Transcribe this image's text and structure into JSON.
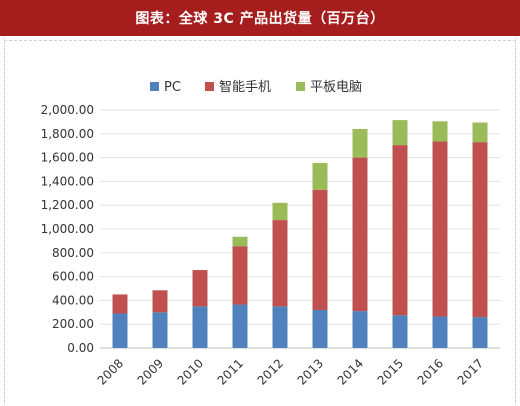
{
  "header": {
    "title": "图表：全球 3C 产品出货量（百万台）"
  },
  "chart_data": {
    "type": "bar",
    "stacked": true,
    "title": "图表：全球 3C 产品出货量（百万台）",
    "categories": [
      "2008",
      "2009",
      "2010",
      "2011",
      "2012",
      "2013",
      "2014",
      "2015",
      "2016",
      "2017"
    ],
    "series": [
      {
        "name": "PC",
        "color": "#4f81bd",
        "values": [
          290,
          300,
          350,
          365,
          350,
          320,
          310,
          275,
          265,
          260
        ]
      },
      {
        "name": "智能手机",
        "color": "#c0504d",
        "values": [
          160,
          185,
          305,
          490,
          725,
          1010,
          1290,
          1430,
          1470,
          1470
        ]
      },
      {
        "name": "平板电脑",
        "color": "#9bbb59",
        "values": [
          0,
          0,
          0,
          80,
          145,
          225,
          240,
          210,
          170,
          165
        ]
      }
    ],
    "ylim": [
      0,
      2000
    ],
    "yticks": [
      "0.00",
      "200.00",
      "400.00",
      "600.00",
      "800.00",
      "1,000.00",
      "1,200.00",
      "1,400.00",
      "1,600.00",
      "1,800.00",
      "2,000.00"
    ],
    "grid": true,
    "legend_position": "top"
  }
}
